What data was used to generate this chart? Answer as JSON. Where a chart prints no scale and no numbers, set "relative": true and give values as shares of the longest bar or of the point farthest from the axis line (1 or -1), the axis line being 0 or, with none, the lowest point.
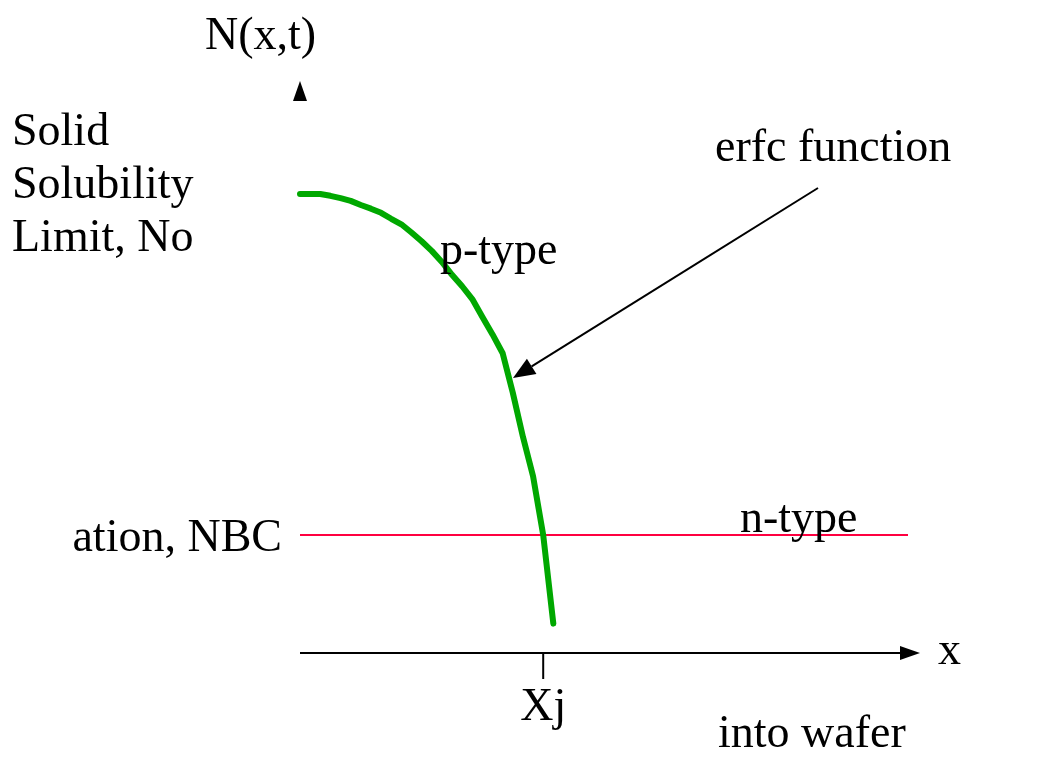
{
  "chart_data": {
    "type": "line",
    "relative": true,
    "ylabel": "N(x,t)",
    "categories": [
      null,
      null,
      null,
      null,
      null,
      null,
      null,
      null,
      null,
      null,
      null,
      null,
      null,
      null,
      null,
      null,
      null,
      null,
      null,
      null,
      null,
      null,
      null,
      null,
      null,
      null,
      null,
      null,
      null,
      null,
      null,
      null,
      null,
      null,
      null,
      null,
      null,
      null,
      null,
      null,
      null,
      null,
      null,
      null,
      null,
      null,
      null,
      null,
      null,
      null,
      null,
      null,
      null,
      null,
      null,
      null,
      null,
      null,
      null,
      null,
      null
    ],
    "series": [
      {
        "color": "#00a800",
        "values": [
          1,
          1,
          1,
          0.996,
          0.991,
          0.985,
          0.976,
          0.968,
          0.959,
          0.946,
          0.934,
          0.916,
          0.897,
          0.876,
          0.852,
          0.824,
          0.799,
          0.771,
          0.732,
          0.694,
          0.653,
          0.567,
          0.471,
          0.385,
          0.257,
          0.064,
          null,
          null,
          null,
          null,
          null,
          null,
          null,
          null,
          null,
          null,
          null,
          null,
          null,
          null,
          null,
          null,
          null,
          null,
          null,
          null,
          null,
          null,
          null,
          null,
          null,
          null,
          null,
          null,
          null,
          null,
          null,
          null,
          null,
          null,
          null
        ]
      }
    ],
    "ref_lines": [
      {
        "axis": "y",
        "value": 0.257,
        "label": "ation, NBC",
        "color": "#ff0040"
      }
    ],
    "annotations": [
      "Solid Solubility Limit, No",
      "erfc function",
      "p-type",
      "n-type",
      "x",
      "into wafer",
      "Xj"
    ],
    "marker": "none",
    "line_style": "solid",
    "legend": false,
    "grid": false
  }
}
